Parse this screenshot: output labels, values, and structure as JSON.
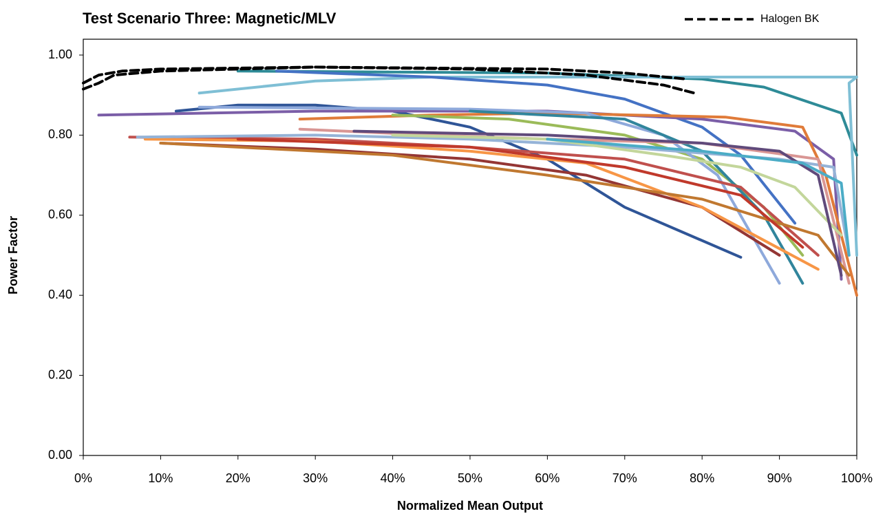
{
  "chart_data": {
    "type": "line",
    "title": "Test Scenario Three: Magnetic/MLV",
    "x_label": "Normalized Mean Output",
    "y_label": "Power Factor",
    "xlim": [
      0,
      100
    ],
    "ylim": [
      0,
      1
    ],
    "xticks": [
      {
        "value": 0,
        "label": "0%"
      },
      {
        "value": 10,
        "label": "10%"
      },
      {
        "value": 20,
        "label": "20%"
      },
      {
        "value": 30,
        "label": "30%"
      },
      {
        "value": 40,
        "label": "40%"
      },
      {
        "value": 50,
        "label": "50%"
      },
      {
        "value": 60,
        "label": "60%"
      },
      {
        "value": 70,
        "label": "70%"
      },
      {
        "value": 80,
        "label": "80%"
      },
      {
        "value": 90,
        "label": "90%"
      },
      {
        "value": 100,
        "label": "100%"
      }
    ],
    "yticks": [
      {
        "value": 0,
        "label": "0.00"
      },
      {
        "value": 0.2,
        "label": "0.20"
      },
      {
        "value": 0.4,
        "label": "0.40"
      },
      {
        "value": 0.6,
        "label": "0.60"
      },
      {
        "value": 0.8,
        "label": "0.80"
      },
      {
        "value": 1,
        "label": "1.00"
      }
    ],
    "legend": "top-right",
    "series": [
      {
        "color": "#2e8b97",
        "x": [
          20,
          60,
          80,
          88,
          98,
          100
        ],
        "values": [
          0.96,
          0.955,
          0.94,
          0.92,
          0.855,
          0.75
        ]
      },
      {
        "color": "#7fbfd5",
        "x": [
          15,
          30,
          45,
          100,
          99,
          100
        ],
        "values": [
          0.905,
          0.935,
          0.945,
          0.945,
          0.93,
          0.5
        ]
      },
      {
        "color": "#4472c4",
        "x": [
          25,
          45,
          60,
          70,
          80,
          85,
          92
        ],
        "values": [
          0.96,
          0.945,
          0.925,
          0.89,
          0.82,
          0.75,
          0.58
        ]
      },
      {
        "color": "#2f5597",
        "x": [
          12,
          20,
          30,
          40,
          50,
          60,
          70,
          85
        ],
        "values": [
          0.86,
          0.875,
          0.875,
          0.86,
          0.82,
          0.74,
          0.62,
          0.495
        ]
      },
      {
        "color": "#7b5ea7",
        "x": [
          2,
          30,
          60,
          80,
          92,
          97,
          98
        ],
        "values": [
          0.85,
          0.86,
          0.86,
          0.84,
          0.81,
          0.74,
          0.44
        ]
      },
      {
        "color": "#e07b39",
        "x": [
          28,
          45,
          60,
          83,
          93,
          96,
          100
        ],
        "values": [
          0.84,
          0.85,
          0.855,
          0.845,
          0.82,
          0.7,
          0.4
        ]
      },
      {
        "color": "#9bbb59",
        "x": [
          40,
          55,
          70,
          80,
          88,
          93
        ],
        "values": [
          0.85,
          0.84,
          0.8,
          0.74,
          0.62,
          0.5
        ]
      },
      {
        "color": "#8ea9db",
        "x": [
          15,
          50,
          65,
          75,
          82,
          90
        ],
        "values": [
          0.87,
          0.865,
          0.855,
          0.8,
          0.7,
          0.43
        ]
      },
      {
        "color": "#31859c",
        "x": [
          50,
          70,
          80,
          88,
          93
        ],
        "values": [
          0.86,
          0.84,
          0.76,
          0.6,
          0.43
        ]
      },
      {
        "color": "#c0504d",
        "x": [
          6,
          30,
          50,
          70,
          85,
          95
        ],
        "values": [
          0.795,
          0.79,
          0.77,
          0.74,
          0.67,
          0.5
        ]
      },
      {
        "color": "#943634",
        "x": [
          10,
          30,
          50,
          65,
          80,
          90
        ],
        "values": [
          0.78,
          0.765,
          0.74,
          0.7,
          0.62,
          0.5
        ]
      },
      {
        "color": "#f79646",
        "x": [
          8,
          30,
          50,
          65,
          80,
          95
        ],
        "values": [
          0.79,
          0.785,
          0.76,
          0.73,
          0.62,
          0.465
        ]
      },
      {
        "color": "#95b3d7",
        "x": [
          7,
          30,
          50,
          70,
          90,
          97,
          99
        ],
        "values": [
          0.795,
          0.8,
          0.79,
          0.77,
          0.74,
          0.72,
          0.5
        ]
      },
      {
        "color": "#d99694",
        "x": [
          28,
          45,
          60,
          80,
          95,
          99
        ],
        "values": [
          0.815,
          0.8,
          0.79,
          0.78,
          0.74,
          0.43
        ]
      },
      {
        "color": "#c3d69b",
        "x": [
          40,
          60,
          75,
          85,
          92,
          98
        ],
        "values": [
          0.8,
          0.79,
          0.75,
          0.72,
          0.67,
          0.55
        ]
      },
      {
        "color": "#c07830",
        "x": [
          10,
          40,
          60,
          80,
          95,
          99
        ],
        "values": [
          0.78,
          0.75,
          0.7,
          0.64,
          0.55,
          0.45
        ]
      },
      {
        "color": "#604a7b",
        "x": [
          35,
          60,
          80,
          90,
          95,
          98
        ],
        "values": [
          0.81,
          0.8,
          0.78,
          0.76,
          0.7,
          0.45
        ]
      },
      {
        "color": "#c0392b",
        "x": [
          20,
          50,
          70,
          85,
          93
        ],
        "values": [
          0.79,
          0.77,
          0.72,
          0.65,
          0.52
        ]
      },
      {
        "color": "#4bacc6",
        "x": [
          60,
          80,
          93,
          98,
          99
        ],
        "values": [
          0.79,
          0.76,
          0.73,
          0.68,
          0.5
        ]
      },
      {
        "name": "Halogen BK",
        "color": "#000000",
        "dash": true,
        "x": [
          0,
          2,
          5,
          10,
          30,
          60,
          70,
          78
        ],
        "values": [
          0.93,
          0.95,
          0.96,
          0.965,
          0.97,
          0.965,
          0.955,
          0.94
        ]
      },
      {
        "color": "#000000",
        "dash": true,
        "x": [
          0,
          2,
          4,
          10,
          30,
          50,
          65,
          75,
          79
        ],
        "values": [
          0.915,
          0.93,
          0.95,
          0.96,
          0.97,
          0.965,
          0.95,
          0.925,
          0.905
        ]
      }
    ]
  }
}
